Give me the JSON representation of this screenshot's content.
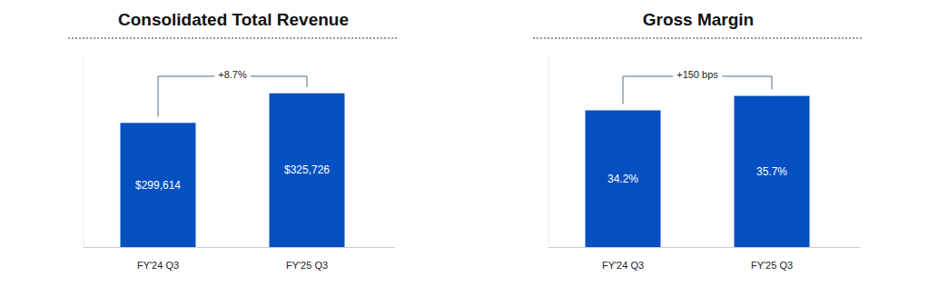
{
  "chart_data": [
    {
      "type": "bar",
      "title": "Consolidated Total Revenue",
      "categories": [
        "FY'24 Q3",
        "FY'25 Q3"
      ],
      "values": [
        299614,
        325726
      ],
      "value_labels": [
        "$299,614",
        "$325,726"
      ],
      "data_labels": true,
      "annotation": "+8.7%",
      "color": "#0550c0",
      "ylim": [
        190000,
        360000
      ],
      "grid": false,
      "tick_labels": "x"
    },
    {
      "type": "bar",
      "title": "Gross Margin",
      "categories": [
        "FY'24 Q3",
        "FY'25 Q3"
      ],
      "values": [
        34.2,
        35.7
      ],
      "value_labels": [
        "34.2%",
        "35.7%"
      ],
      "data_labels": true,
      "annotation": "+150 bps",
      "color": "#0550c0",
      "ylim": [
        20,
        40
      ],
      "grid": false,
      "tick_labels": "x"
    }
  ]
}
